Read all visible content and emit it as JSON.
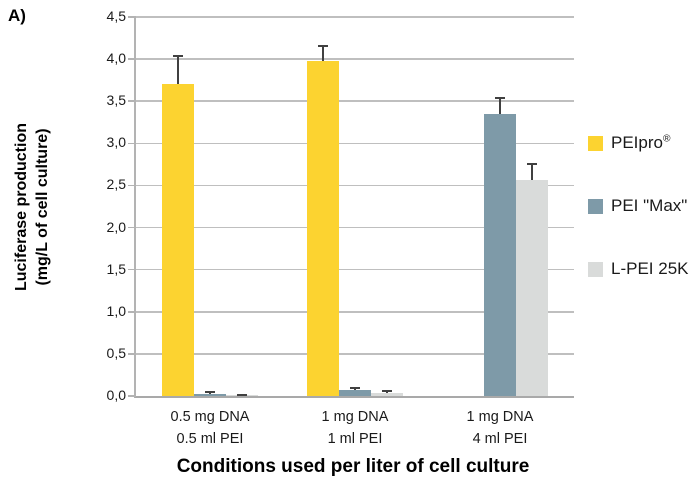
{
  "panel_label": "A)",
  "colors": {
    "peipro": "#FCD330",
    "pei_max": "#7E9AA8",
    "lpei": "#D9DBDA",
    "gridline": "#BFBFBF",
    "error_bar": "#404040"
  },
  "chart_data": {
    "type": "bar",
    "title": "",
    "xlabel": "Conditions used per liter of cell culture",
    "ylabel_line1": "Luciferase production",
    "ylabel_line2": "(mg/L of cell culture)",
    "ylim": [
      0,
      4.5
    ],
    "ytick_step": 0.5,
    "ytick_labels": [
      "0,0",
      "0,5",
      "1,0",
      "1,5",
      "2,0",
      "2,5",
      "3,0",
      "3,5",
      "4,0",
      "4,5"
    ],
    "grid": true,
    "legend_position": "right",
    "categories": [
      [
        "0.5 mg DNA",
        "0.5 ml PEI"
      ],
      [
        "1 mg DNA",
        "1 ml PEI"
      ],
      [
        "1 mg DNA",
        "4 ml PEI"
      ]
    ],
    "series": [
      {
        "name": "PEIpro®",
        "color_key": "peipro",
        "values": [
          3.7,
          3.98,
          null
        ],
        "errors": [
          0.35,
          0.19,
          null
        ]
      },
      {
        "name": "PEI \"Max\"",
        "color_key": "pei_max",
        "values": [
          0.02,
          0.07,
          3.35
        ],
        "errors": [
          0.04,
          0.04,
          0.2
        ]
      },
      {
        "name": "L-PEI 25K",
        "color_key": "lpei",
        "values": [
          0.01,
          0.04,
          2.57
        ],
        "errors": [
          0.01,
          0.03,
          0.2
        ]
      }
    ]
  }
}
